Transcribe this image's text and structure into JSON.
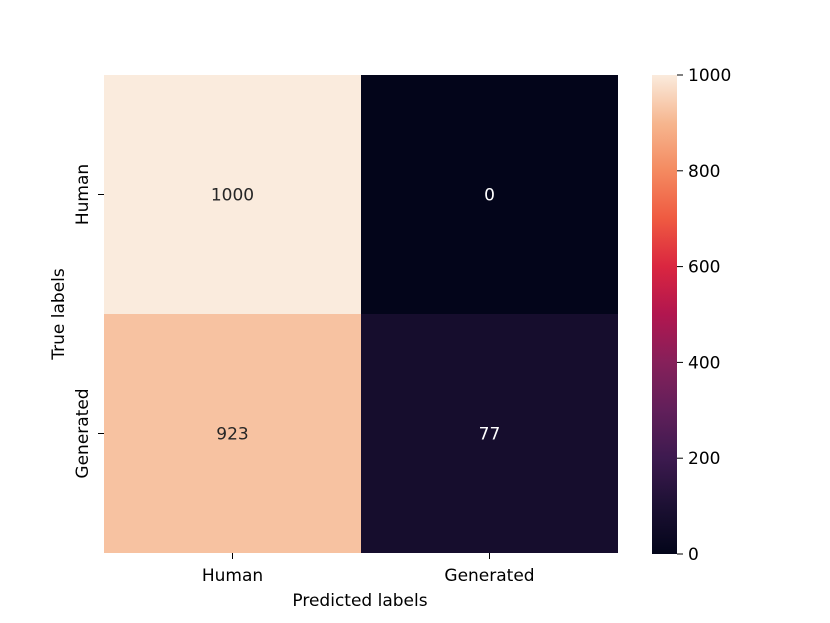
{
  "chart_data": {
    "type": "heatmap",
    "xlabel": "Predicted labels",
    "ylabel": "True labels",
    "x_categories": [
      "Human",
      "Generated"
    ],
    "y_categories": [
      "Human",
      "Generated"
    ],
    "values": [
      [
        1000,
        0
      ],
      [
        923,
        77
      ]
    ],
    "colorbar": {
      "min": 0,
      "max": 1000,
      "ticks": [
        0,
        200,
        400,
        600,
        800,
        1000
      ],
      "colormap": "rocket"
    },
    "grid": false
  }
}
